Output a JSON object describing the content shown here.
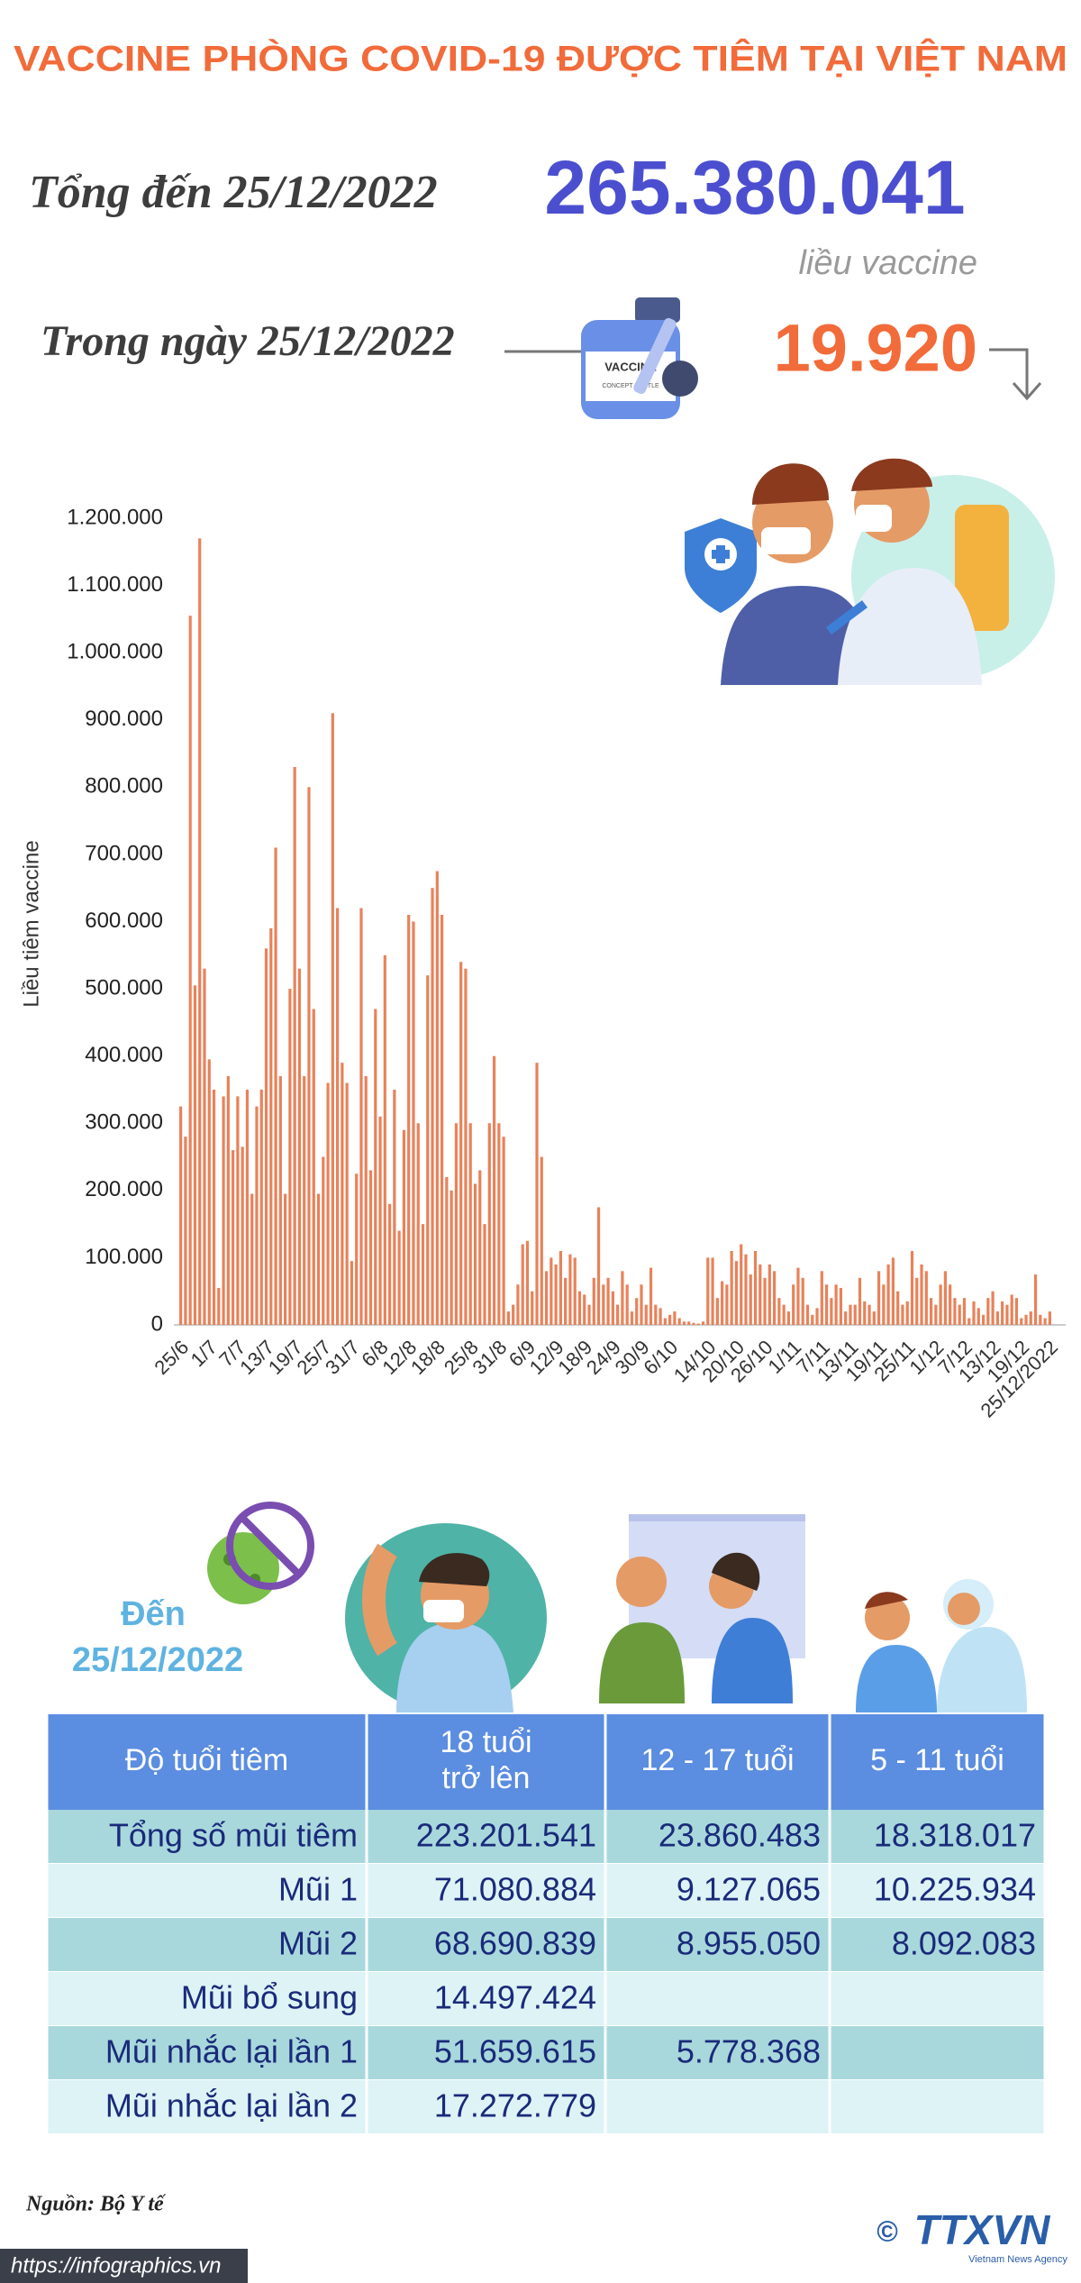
{
  "title": "VACCINE PHÒNG COVID-19 ĐƯỢC TIÊM TẠI VIỆT NAM",
  "summary": {
    "total_label": "Tổng đến 25/12/2022",
    "total_value": "265.380.041",
    "total_unit": "liều vaccine",
    "day_label": "Trong ngày 25/12/2022",
    "day_value": "19.920"
  },
  "illustration": {
    "vial_text": "VACCINE",
    "vial_subtext": "CONCEPT BOTTLE"
  },
  "chart_data": {
    "type": "bar",
    "y_label": "Liều tiêm vaccine",
    "color": "#e8825a",
    "grid": false,
    "ylim": [
      0,
      1200000
    ],
    "yticks": [
      0,
      {
        "value": 100000,
        "label": "100.000"
      },
      {
        "value": 200000,
        "label": "200.000"
      },
      {
        "value": 300000,
        "label": "300.000"
      },
      {
        "value": 400000,
        "label": "400.000"
      },
      {
        "value": 500000,
        "label": "500.000"
      },
      {
        "value": 600000,
        "label": "600.000"
      },
      {
        "value": 700000,
        "label": "700.000"
      },
      {
        "value": 800000,
        "label": "800.000"
      },
      {
        "value": 900000,
        "label": "900.000"
      },
      {
        "value": 1000000,
        "label": "1.000.000"
      },
      {
        "value": 1100000,
        "label": "1.100.000"
      },
      {
        "value": 1200000,
        "label": "1.200.000"
      }
    ],
    "categories": [
      "25/6",
      null,
      null,
      null,
      null,
      null,
      "1/7",
      null,
      null,
      null,
      null,
      null,
      "7/7",
      null,
      null,
      null,
      null,
      null,
      "13/7",
      null,
      null,
      null,
      null,
      null,
      "19/7",
      null,
      null,
      null,
      null,
      null,
      "25/7",
      null,
      null,
      null,
      null,
      null,
      "31/7",
      null,
      null,
      null,
      null,
      null,
      "6/8",
      null,
      null,
      null,
      null,
      null,
      "12/8",
      null,
      null,
      null,
      null,
      null,
      "18/8",
      null,
      null,
      null,
      null,
      null,
      null,
      "25/8",
      null,
      null,
      null,
      null,
      null,
      "31/8",
      null,
      null,
      null,
      null,
      null,
      "6/9",
      null,
      null,
      null,
      null,
      null,
      "12/9",
      null,
      null,
      null,
      null,
      null,
      "18/9",
      null,
      null,
      null,
      null,
      null,
      "24/9",
      null,
      null,
      null,
      null,
      null,
      "30/9",
      null,
      null,
      null,
      null,
      null,
      "6/10",
      null,
      null,
      null,
      null,
      null,
      null,
      null,
      "14/10",
      null,
      null,
      null,
      null,
      null,
      "20/10",
      null,
      null,
      null,
      null,
      null,
      "26/10",
      null,
      null,
      null,
      null,
      null,
      "1/11",
      null,
      null,
      null,
      null,
      null,
      "7/11",
      null,
      null,
      null,
      null,
      null,
      "13/11",
      null,
      null,
      null,
      null,
      null,
      "19/11",
      null,
      null,
      null,
      null,
      null,
      "25/11",
      null,
      null,
      null,
      null,
      null,
      "1/12",
      null,
      null,
      null,
      null,
      null,
      "7/12",
      null,
      null,
      null,
      null,
      null,
      "13/12",
      null,
      null,
      null,
      null,
      null,
      "19/12",
      null,
      null,
      null,
      null,
      null,
      "25/12/2022"
    ],
    "values": [
      325000,
      280000,
      1055000,
      505000,
      1170000,
      530000,
      395000,
      350000,
      55000,
      340000,
      370000,
      260000,
      340000,
      265000,
      350000,
      195000,
      325000,
      350000,
      560000,
      590000,
      710000,
      370000,
      195000,
      500000,
      830000,
      530000,
      370000,
      800000,
      470000,
      195000,
      250000,
      360000,
      910000,
      620000,
      390000,
      360000,
      95000,
      225000,
      620000,
      370000,
      230000,
      470000,
      310000,
      550000,
      180000,
      350000,
      140000,
      290000,
      610000,
      600000,
      300000,
      150000,
      520000,
      650000,
      675000,
      610000,
      220000,
      200000,
      300000,
      540000,
      530000,
      300000,
      210000,
      230000,
      150000,
      300000,
      400000,
      300000,
      280000,
      20000,
      30000,
      60000,
      120000,
      125000,
      50000,
      390000,
      250000,
      80000,
      100000,
      90000,
      110000,
      70000,
      105000,
      100000,
      50000,
      45000,
      30000,
      70000,
      175000,
      60000,
      70000,
      50000,
      30000,
      80000,
      60000,
      20000,
      40000,
      60000,
      30000,
      85000,
      30000,
      25000,
      10000,
      15000,
      20000,
      10000,
      5000,
      5000,
      3000,
      2000,
      5000,
      100000,
      100000,
      40000,
      65000,
      60000,
      110000,
      95000,
      120000,
      105000,
      75000,
      110000,
      90000,
      70000,
      90000,
      80000,
      40000,
      30000,
      20000,
      60000,
      85000,
      70000,
      30000,
      15000,
      25000,
      80000,
      60000,
      40000,
      60000,
      55000,
      20000,
      30000,
      30000,
      70000,
      35000,
      30000,
      20000,
      80000,
      60000,
      90000,
      100000,
      50000,
      30000,
      35000,
      110000,
      70000,
      90000,
      80000,
      40000,
      30000,
      60000,
      80000,
      60000,
      40000,
      30000,
      40000,
      10000,
      35000,
      25000,
      15000,
      40000,
      50000,
      20000,
      35000,
      30000,
      45000,
      40000,
      10000,
      15000,
      20000,
      75000,
      15000,
      10000,
      19920
    ]
  },
  "as_of": [
    "Đến",
    "25/12/2022"
  ],
  "table": {
    "header": [
      [
        "Độ tuổi tiêm"
      ],
      [
        "18 tuổi",
        "trở lên"
      ],
      [
        "12 - 17 tuổi"
      ],
      [
        "5 - 11 tuổi"
      ]
    ],
    "rows": [
      [
        "Tổng số mũi tiêm",
        "223.201.541",
        "23.860.483",
        "18.318.017"
      ],
      [
        "Mũi 1",
        "71.080.884",
        "9.127.065",
        "10.225.934"
      ],
      [
        "Mũi 2",
        "68.690.839",
        "8.955.050",
        "8.092.083"
      ],
      [
        "Mũi bổ sung",
        "14.497.424",
        null,
        null
      ],
      [
        "Mũi nhắc lại lần 1",
        "51.659.615",
        "5.778.368",
        null
      ],
      [
        "Mũi nhắc lại lần 2",
        "17.272.779",
        null,
        null
      ]
    ]
  },
  "footer": {
    "source": "Nguồn: Bộ Y tế",
    "url": "https://infographics.vn",
    "copyright": "©",
    "logo": "TTXVN",
    "logo_sub": "Vietnam News Agency"
  }
}
